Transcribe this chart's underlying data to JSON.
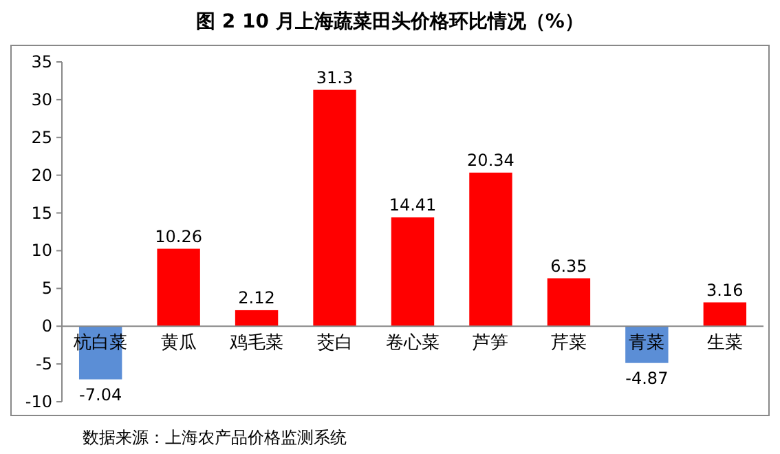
{
  "chart_data": {
    "type": "bar",
    "title": "图 2    10 月上海蔬菜田头价格环比情况（%）",
    "categories": [
      "杭白菜",
      "黄瓜",
      "鸡毛菜",
      "茭白",
      "卷心菜",
      "芦笋",
      "芹菜",
      "青菜",
      "生菜"
    ],
    "values": [
      -7.04,
      10.26,
      2.12,
      31.3,
      14.41,
      20.34,
      6.35,
      -4.87,
      3.16
    ],
    "colors": [
      "#5b8ed6",
      "#ff0000",
      "#ff0000",
      "#ff0000",
      "#ff0000",
      "#ff0000",
      "#ff0000",
      "#5b8ed6",
      "#ff0000"
    ],
    "ylim": [
      -10,
      35
    ],
    "yticks": [
      -10,
      -5,
      0,
      5,
      10,
      15,
      20,
      25,
      30,
      35
    ],
    "grid": false,
    "data_labels": true,
    "annotations": [
      "数据来源：上海农产品价格监测系统"
    ]
  }
}
